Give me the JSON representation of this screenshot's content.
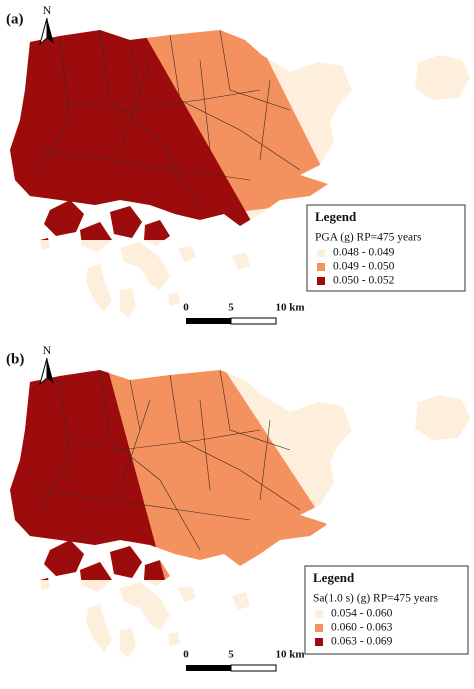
{
  "panels": [
    {
      "label": "(a)",
      "north": "N",
      "legend": {
        "title": "Legend",
        "subtitle": "PGA (g) RP=475 years",
        "items": [
          {
            "label": "0.048 - 0.049",
            "color": "#fdefdc"
          },
          {
            "label": "0.049 - 0.050",
            "color": "#f4925f"
          },
          {
            "label": "0.050 - 0.052",
            "color": "#9d0c0c"
          }
        ]
      },
      "scale": [
        "0",
        "5",
        "10 km"
      ]
    },
    {
      "label": "(b)",
      "north": "N",
      "legend": {
        "title": "Legend",
        "subtitle": "Sa(1.0 s) (g) RP=475 years",
        "items": [
          {
            "label": "0.054 - 0.060",
            "color": "#fdefdc"
          },
          {
            "label": "0.060 - 0.063",
            "color": "#f4925f"
          },
          {
            "label": "0.063 - 0.069",
            "color": "#9d0c0c"
          }
        ]
      },
      "scale": [
        "0",
        "5",
        "10 km"
      ]
    }
  ]
}
